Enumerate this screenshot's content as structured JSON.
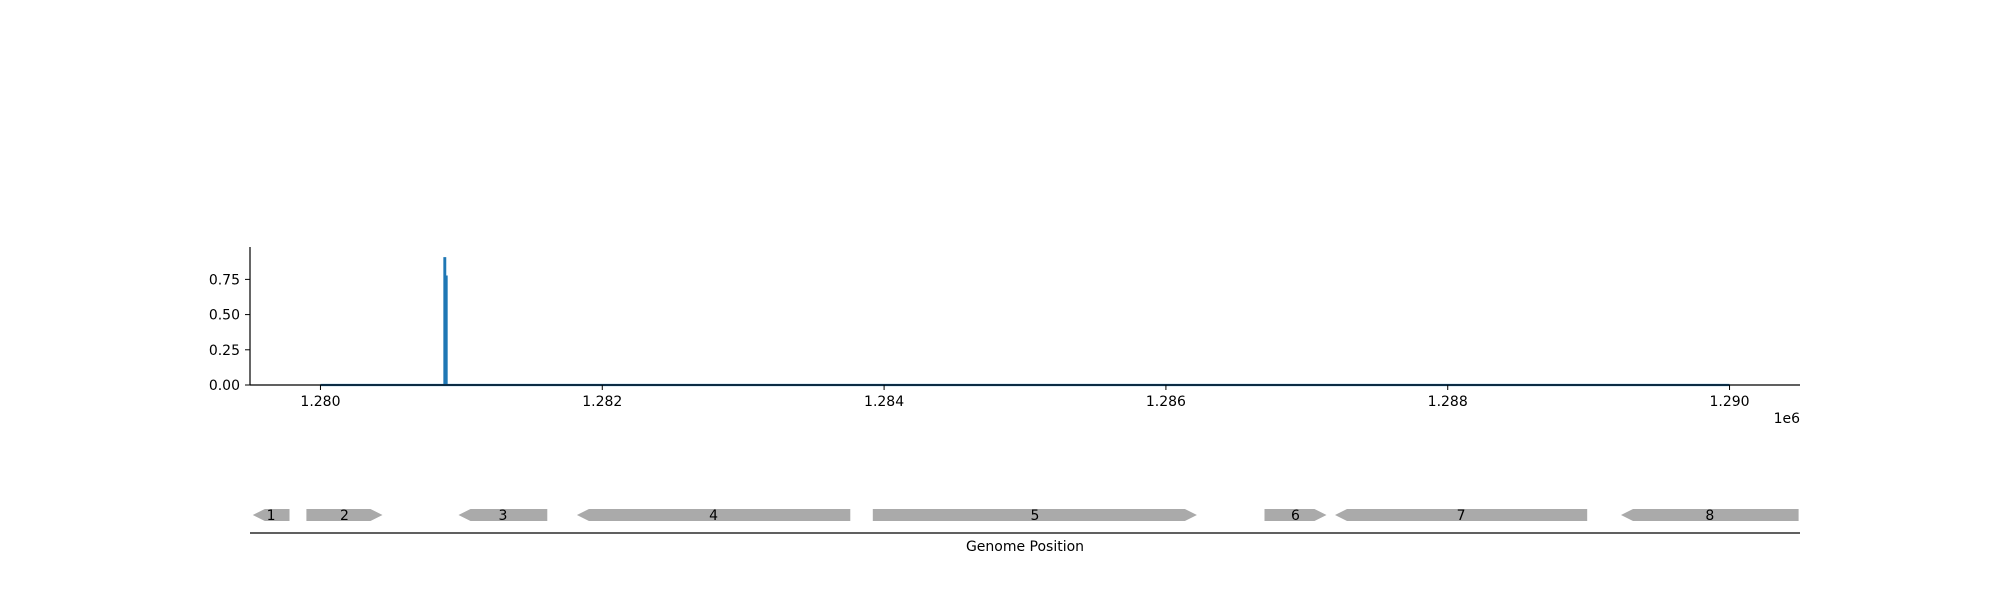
{
  "chart_data": [
    {
      "type": "line",
      "title": "",
      "xlabel": "",
      "ylabel": "",
      "x_offset_label": "1e6",
      "xlim": [
        1279500,
        1290500
      ],
      "ylim": [
        0,
        0.98
      ],
      "x_ticks": [
        1280000,
        1282000,
        1284000,
        1286000,
        1288000,
        1290000
      ],
      "x_tick_labels": [
        "1.280",
        "1.282",
        "1.284",
        "1.286",
        "1.288",
        "1.290"
      ],
      "y_ticks": [
        0,
        0.25,
        0.5,
        0.75
      ],
      "y_tick_labels": [
        "0.00",
        "0.25",
        "0.50",
        "0.75"
      ],
      "grid": false,
      "series": [
        {
          "color": "#1f77b4",
          "x": [
            1280000,
            1280880,
            1280880,
            1280885,
            1280885,
            1280890,
            1280890,
            1280895,
            1280895,
            1290000
          ],
          "y": [
            0,
            0,
            0.9,
            0.9,
            0,
            0,
            0.77,
            0.77,
            0,
            0
          ]
        }
      ]
    },
    {
      "type": "gene-track",
      "xlabel": "Genome Position",
      "color": "#aaaaaa",
      "genes": [
        {
          "label": "1",
          "start": 1279520,
          "end": 1279780,
          "strand": "-"
        },
        {
          "label": "2",
          "start": 1279900,
          "end": 1280440,
          "strand": "+"
        },
        {
          "label": "3",
          "start": 1280980,
          "end": 1281610,
          "strand": "-"
        },
        {
          "label": "4",
          "start": 1281820,
          "end": 1283760,
          "strand": "-"
        },
        {
          "label": "5",
          "start": 1283920,
          "end": 1286220,
          "strand": "+"
        },
        {
          "label": "6",
          "start": 1286700,
          "end": 1287140,
          "strand": "+"
        },
        {
          "label": "7",
          "start": 1287200,
          "end": 1288990,
          "strand": "-"
        },
        {
          "label": "8",
          "start": 1289230,
          "end": 1290490,
          "strand": "-"
        }
      ]
    }
  ]
}
